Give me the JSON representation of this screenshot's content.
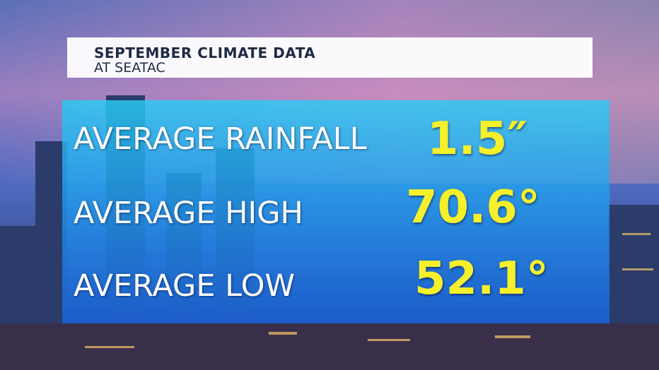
{
  "header": {
    "title": "SEPTEMBER CLIMATE DATA",
    "subtitle": "AT SEATAC"
  },
  "rows": [
    {
      "label": "AVERAGE RAINFALL",
      "value": "1.5″"
    },
    {
      "label": "AVERAGE HIGH",
      "value": "70.6°"
    },
    {
      "label": "AVERAGE LOW",
      "value": "52.1°"
    }
  ]
}
